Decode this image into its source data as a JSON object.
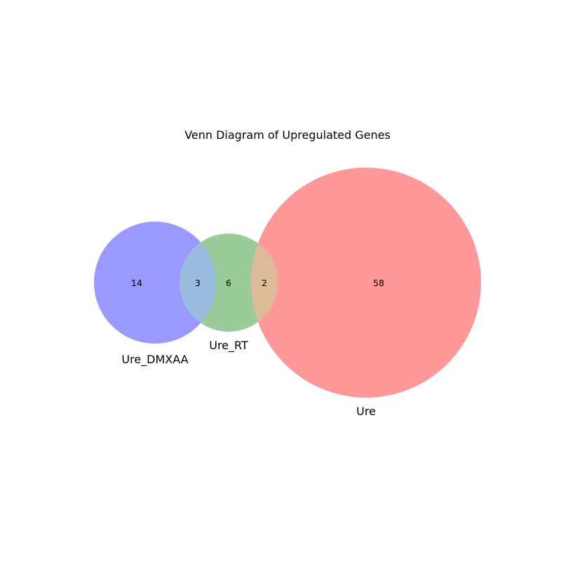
{
  "diagram": {
    "title": "Venn Diagram of Upregulated Genes",
    "sets": [
      {
        "id": "dmxaa",
        "label": "Ure_DMXAA",
        "color": "#9999ff"
      },
      {
        "id": "rt",
        "label": "Ure_RT",
        "color": "#99cc99"
      },
      {
        "id": "ure",
        "label": "Ure",
        "color": "#ff9999"
      }
    ],
    "overlap_colors": {
      "dmxaa_rt": "#99bbdd",
      "rt_ure": "#ddbb99"
    },
    "regions": {
      "dmxaa_only": "14",
      "dmxaa_rt": "3",
      "rt_only": "6",
      "rt_ure": "2",
      "ure_only": "58"
    }
  }
}
